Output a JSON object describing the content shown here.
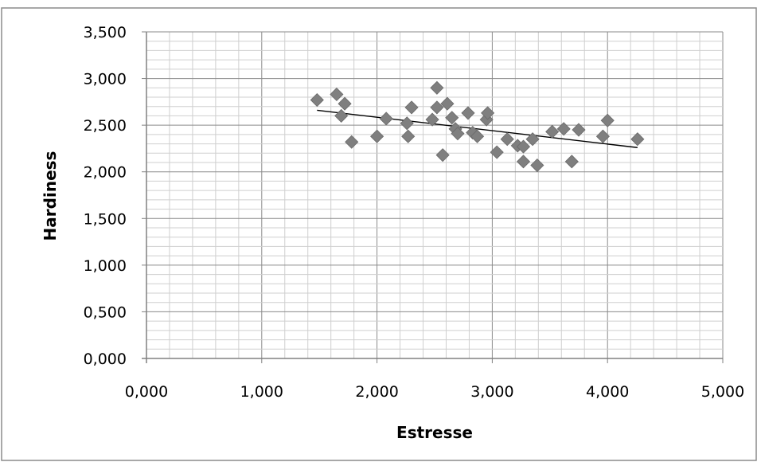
{
  "chart_data": {
    "type": "scatter",
    "xlabel": "Estresse",
    "ylabel": "Hardiness",
    "xlim": [
      0,
      5
    ],
    "ylim": [
      0,
      3.5
    ],
    "x_ticks": [
      "0,000",
      "1,000",
      "2,000",
      "3,000",
      "4,000",
      "5,000"
    ],
    "y_ticks": [
      "0,000",
      "0,500",
      "1,000",
      "1,500",
      "2,000",
      "2,500",
      "3,000",
      "3,500"
    ],
    "grid": true,
    "legend": "none",
    "marker": "diamond",
    "marker_color": "#7f7f7f",
    "trendline": {
      "x1": 1.48,
      "y1": 2.66,
      "x2": 4.26,
      "y2": 2.26,
      "color": "#000000"
    },
    "points": [
      {
        "x": 1.48,
        "y": 2.77
      },
      {
        "x": 1.65,
        "y": 2.83
      },
      {
        "x": 1.69,
        "y": 2.6
      },
      {
        "x": 1.72,
        "y": 2.73
      },
      {
        "x": 1.78,
        "y": 2.32
      },
      {
        "x": 2.0,
        "y": 2.38
      },
      {
        "x": 2.08,
        "y": 2.57
      },
      {
        "x": 2.26,
        "y": 2.52
      },
      {
        "x": 2.27,
        "y": 2.38
      },
      {
        "x": 2.3,
        "y": 2.69
      },
      {
        "x": 2.48,
        "y": 2.56
      },
      {
        "x": 2.52,
        "y": 2.9
      },
      {
        "x": 2.52,
        "y": 2.69
      },
      {
        "x": 2.57,
        "y": 2.18
      },
      {
        "x": 2.61,
        "y": 2.73
      },
      {
        "x": 2.65,
        "y": 2.58
      },
      {
        "x": 2.68,
        "y": 2.46
      },
      {
        "x": 2.7,
        "y": 2.41
      },
      {
        "x": 2.79,
        "y": 2.63
      },
      {
        "x": 2.83,
        "y": 2.42
      },
      {
        "x": 2.87,
        "y": 2.38
      },
      {
        "x": 2.95,
        "y": 2.56
      },
      {
        "x": 2.96,
        "y": 2.63
      },
      {
        "x": 3.04,
        "y": 2.21
      },
      {
        "x": 3.13,
        "y": 2.35
      },
      {
        "x": 3.22,
        "y": 2.28
      },
      {
        "x": 3.27,
        "y": 2.11
      },
      {
        "x": 3.27,
        "y": 2.27
      },
      {
        "x": 3.35,
        "y": 2.35
      },
      {
        "x": 3.39,
        "y": 2.07
      },
      {
        "x": 3.52,
        "y": 2.43
      },
      {
        "x": 3.62,
        "y": 2.46
      },
      {
        "x": 3.69,
        "y": 2.11
      },
      {
        "x": 3.75,
        "y": 2.45
      },
      {
        "x": 3.96,
        "y": 2.38
      },
      {
        "x": 4.0,
        "y": 2.55
      },
      {
        "x": 4.26,
        "y": 2.35
      }
    ]
  }
}
